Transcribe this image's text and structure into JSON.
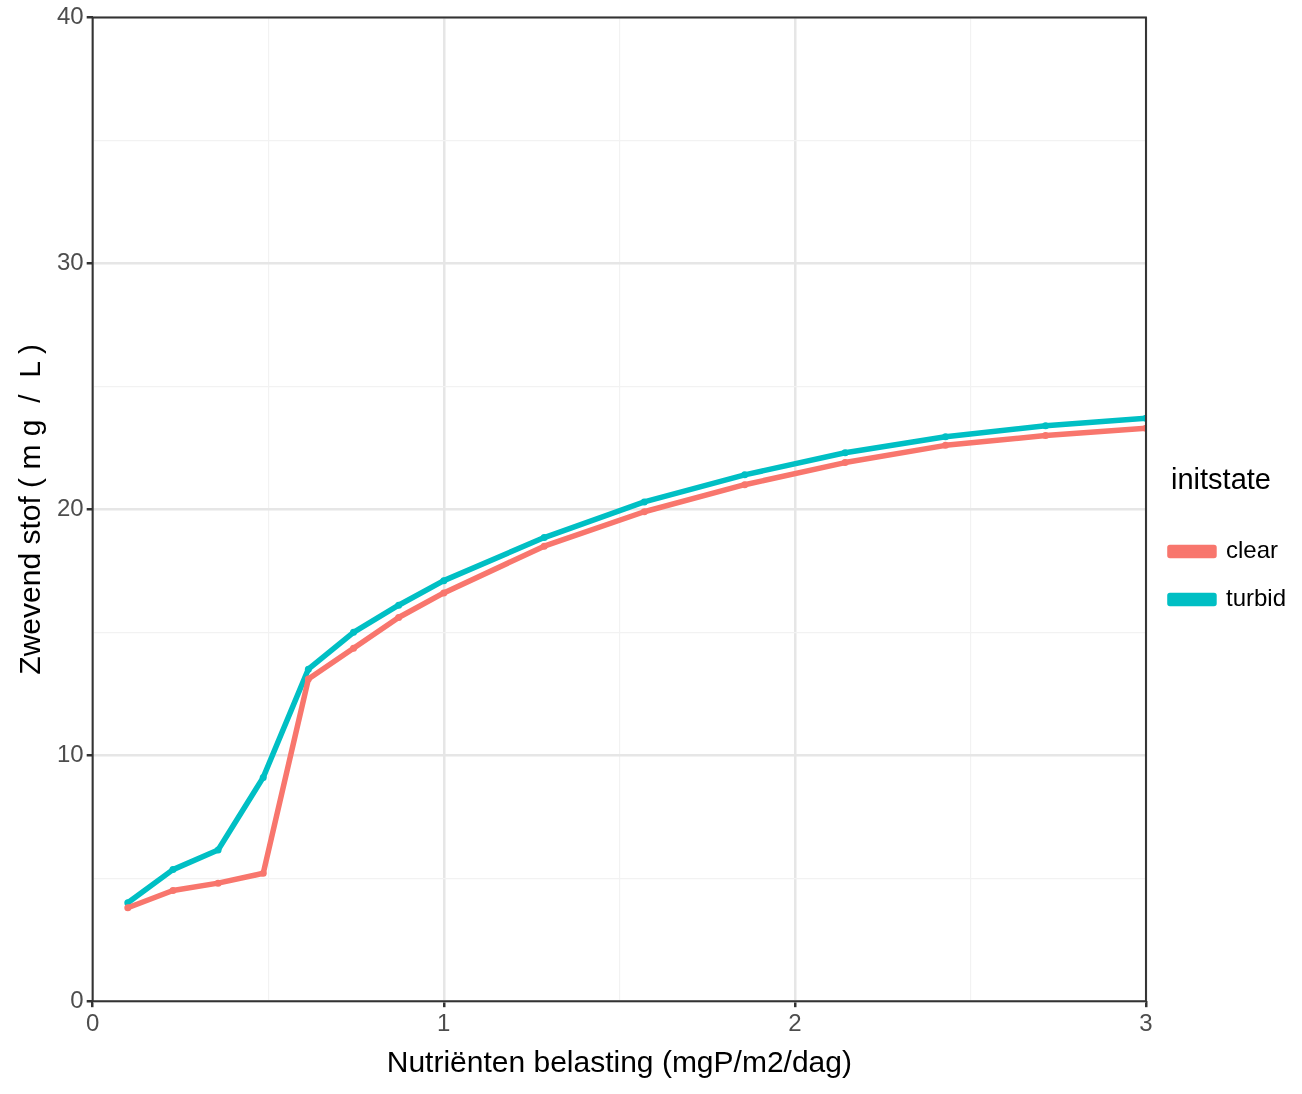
{
  "chart_data": {
    "type": "line",
    "xlabel": "Nutriënten belasting (mgP/m2/dag)",
    "ylabel": "Zwevend stof ( m g  /  L )",
    "legend_title": "initstate",
    "legend": "right",
    "grid": true,
    "marker": "circle",
    "line_style": "solid",
    "x": [
      0.1,
      0.2286,
      0.3571,
      0.4857,
      0.6143,
      0.7429,
      0.8714,
      1.0,
      1.286,
      1.571,
      1.857,
      2.143,
      2.429,
      2.714,
      3.0
    ],
    "xlim": [
      0,
      3
    ],
    "xticks": [
      0,
      {
        "value": 0.5,
        "label": null
      },
      1,
      {
        "value": 1.5,
        "label": null
      },
      2,
      {
        "value": 2.5,
        "label": null
      },
      3
    ],
    "ylim": [
      0,
      40
    ],
    "yticks": [
      0,
      {
        "value": 5,
        "label": null
      },
      10,
      {
        "value": 15,
        "label": null
      },
      20,
      {
        "value": 25,
        "label": null
      },
      30,
      {
        "value": 35,
        "label": null
      },
      40
    ],
    "series": [
      {
        "name": "clear",
        "color": "#f8766d",
        "values": [
          3.8,
          4.5,
          4.8,
          5.2,
          13.1,
          14.35,
          15.6,
          16.6,
          18.5,
          19.9,
          21.0,
          21.9,
          22.6,
          23.0,
          23.3
        ]
      },
      {
        "name": "turbid",
        "color": "#00bfc4",
        "values": [
          4.0,
          5.35,
          6.15,
          9.1,
          13.5,
          15.0,
          16.1,
          17.1,
          18.85,
          20.3,
          21.4,
          22.3,
          22.95,
          23.4,
          23.7
        ]
      }
    ]
  }
}
